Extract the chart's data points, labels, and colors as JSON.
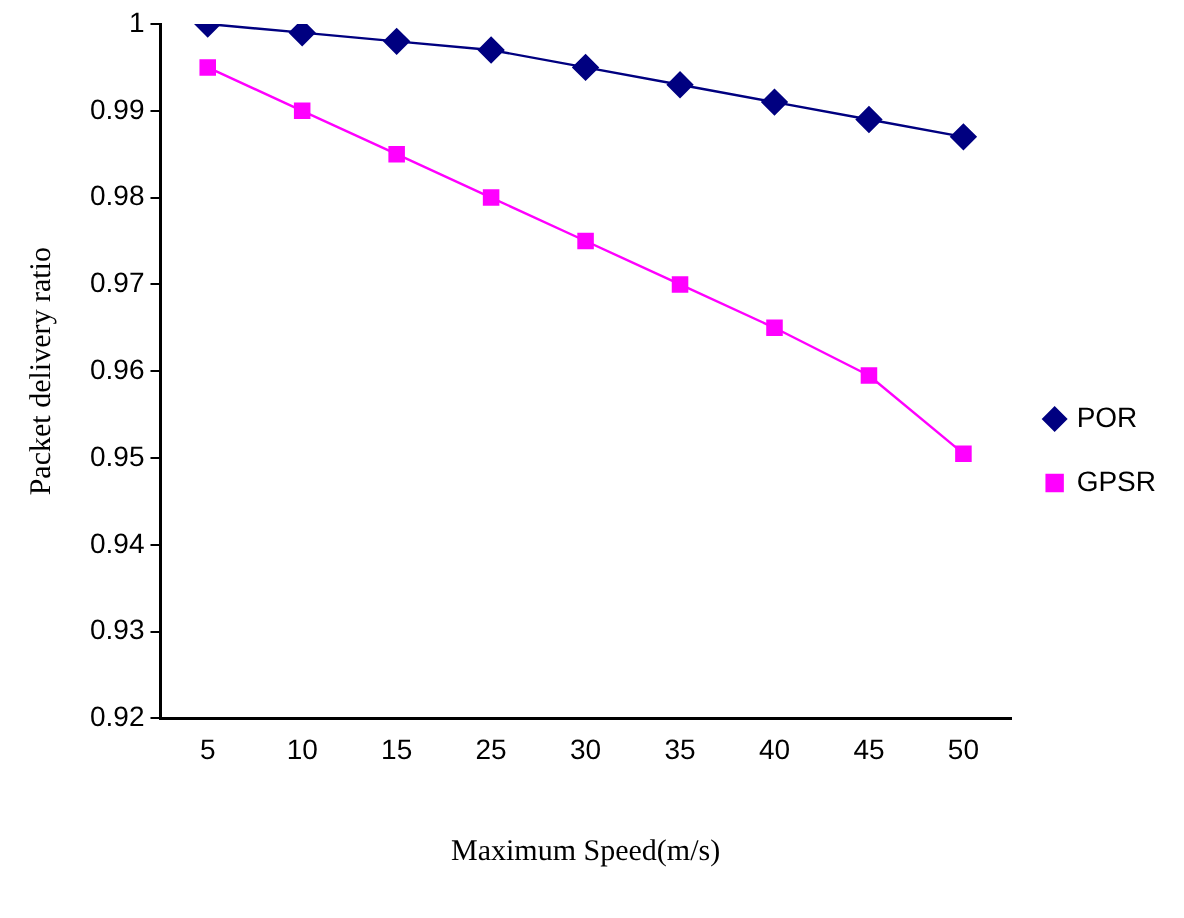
{
  "chart_data": {
    "type": "line",
    "xlabel": "Maximum Speed(m/s)",
    "ylabel": "Packet delivery ratio",
    "categories": [
      "5",
      "10",
      "15",
      "25",
      "30",
      "35",
      "40",
      "45",
      "50"
    ],
    "series": [
      {
        "name": "POR",
        "color": "#000080",
        "marker": "diamond",
        "values": [
          1.0,
          0.999,
          0.998,
          0.997,
          0.995,
          0.993,
          0.991,
          0.989,
          0.987
        ]
      },
      {
        "name": "GPSR",
        "color": "#ff00ff",
        "marker": "square",
        "values": [
          0.995,
          0.99,
          0.985,
          0.98,
          0.975,
          0.97,
          0.965,
          0.9595,
          0.9505
        ]
      }
    ],
    "ylim": [
      0.92,
      1
    ],
    "yticks": [
      0.92,
      0.93,
      0.94,
      0.95,
      0.96,
      0.97,
      0.98,
      0.99,
      1
    ],
    "grid": false,
    "legend": "right",
    "line_style": "solid"
  }
}
